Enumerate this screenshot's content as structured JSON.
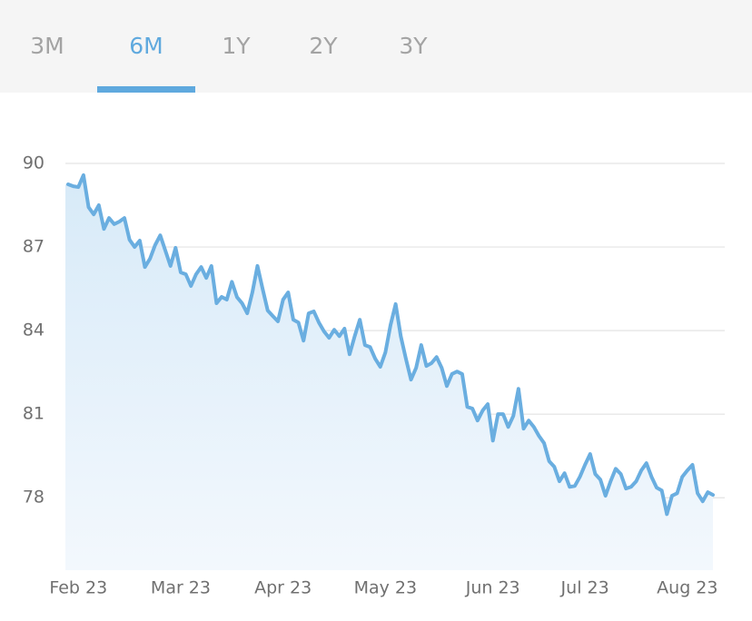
{
  "tabs": [
    "3M",
    "6M",
    "1Y",
    "2Y",
    "3Y"
  ],
  "selected": 1,
  "chart_data": {
    "type": "area",
    "color": "#6aaee0",
    "grid": true,
    "ylim": [
      75.4,
      90
    ],
    "yticks": [
      78,
      81,
      84,
      87,
      90
    ],
    "categories": [
      null,
      null,
      "Feb 23",
      null,
      null,
      null,
      null,
      null,
      null,
      null,
      null,
      null,
      null,
      null,
      null,
      null,
      null,
      null,
      null,
      null,
      null,
      null,
      "Mar 23",
      null,
      null,
      null,
      null,
      null,
      null,
      null,
      null,
      null,
      null,
      null,
      null,
      null,
      null,
      null,
      null,
      null,
      null,
      null,
      "Apr 23",
      null,
      null,
      null,
      null,
      null,
      null,
      null,
      null,
      null,
      null,
      null,
      null,
      null,
      null,
      null,
      null,
      null,
      null,
      null,
      "May 23",
      null,
      null,
      null,
      null,
      null,
      null,
      null,
      null,
      null,
      null,
      null,
      null,
      null,
      null,
      null,
      null,
      null,
      null,
      null,
      null,
      "Jun 23",
      null,
      null,
      null,
      null,
      null,
      null,
      null,
      null,
      null,
      null,
      null,
      null,
      null,
      null,
      null,
      null,
      null,
      "Jul 23",
      null,
      null,
      null,
      null,
      null,
      null,
      null,
      null,
      null,
      null,
      null,
      null,
      null,
      null,
      null,
      null,
      null,
      null,
      null,
      "Aug 23",
      null,
      null,
      null,
      null,
      null
    ],
    "values": [
      89.25,
      89.18,
      89.15,
      89.58,
      88.43,
      88.17,
      88.5,
      87.65,
      88.04,
      87.82,
      87.91,
      88.04,
      87.26,
      87.0,
      87.23,
      86.28,
      86.58,
      87.07,
      87.42,
      86.87,
      86.32,
      86.97,
      86.09,
      86.02,
      85.6,
      86.02,
      86.28,
      85.89,
      86.32,
      84.98,
      85.21,
      85.11,
      85.75,
      85.2,
      84.98,
      84.62,
      85.37,
      86.32,
      85.5,
      84.72,
      84.52,
      84.33,
      85.11,
      85.37,
      84.39,
      84.29,
      83.64,
      84.62,
      84.69,
      84.29,
      83.97,
      83.74,
      84.03,
      83.8,
      84.07,
      83.15,
      83.8,
      84.39,
      83.48,
      83.41,
      82.99,
      82.7,
      83.22,
      84.2,
      84.95,
      83.8,
      82.99,
      82.24,
      82.66,
      83.48,
      82.73,
      82.83,
      83.05,
      82.66,
      82.01,
      82.44,
      82.53,
      82.44,
      81.26,
      81.2,
      80.77,
      81.13,
      81.36,
      80.05,
      81.0,
      81.0,
      80.54,
      80.94,
      81.91,
      80.48,
      80.77,
      80.54,
      80.22,
      79.96,
      79.31,
      79.11,
      78.59,
      78.88,
      78.39,
      78.42,
      78.75,
      79.18,
      79.57,
      78.85,
      78.65,
      78.07,
      78.59,
      79.04,
      78.85,
      78.33,
      78.39,
      78.59,
      78.98,
      79.24,
      78.75,
      78.36,
      78.26,
      77.41,
      78.07,
      78.16,
      78.75,
      78.98,
      79.18,
      78.16,
      77.87,
      78.2,
      78.1
    ]
  }
}
